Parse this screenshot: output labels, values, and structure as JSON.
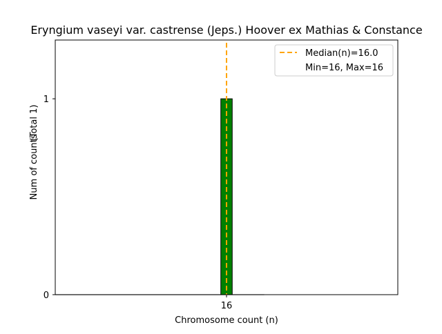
{
  "chart_data": {
    "type": "bar",
    "title": "Eryngium vaseyi var. castrense (Jeps.) Hoover ex Mathias & Constance",
    "xlabel": "Chromosome count (n)",
    "ylabel": "Num of counts",
    "ylabel_total": "(Total 1)",
    "categories": [
      16
    ],
    "values": [
      1
    ],
    "xticks": [
      "16"
    ],
    "yticks": [
      "0",
      "1"
    ],
    "xlim": [
      14.5,
      17.5
    ],
    "ylim": [
      0,
      1.3
    ],
    "grid": false,
    "bar_color": "#008000",
    "median": 16.0,
    "median_color": "#FFA500",
    "legend": {
      "placement": "top-right",
      "entries": [
        "Median(n)=16.0",
        "Min=16, Max=16"
      ]
    }
  }
}
